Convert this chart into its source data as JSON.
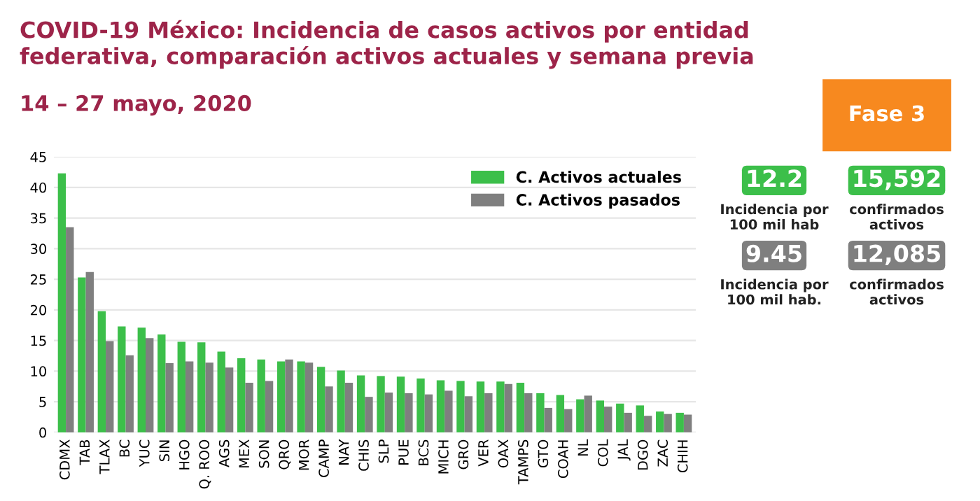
{
  "chart_data": {
    "type": "bar",
    "title": "COVID-19 México: Incidencia de casos activos por entidad\nfederativa, comparación activos actuales y semana previa",
    "subtitle": "14 – 27 mayo, 2020",
    "categories": [
      "CDMX",
      "TAB",
      "TLAX",
      "BC",
      "YUC",
      "SIN",
      "HGO",
      "Q. ROO",
      "AGS",
      "MEX",
      "SON",
      "QRO",
      "MOR",
      "CAMP",
      "NAY",
      "CHIS",
      "SLP",
      "PUE",
      "BCS",
      "MICH",
      "GRO",
      "VER",
      "OAX",
      "TAMPS",
      "GTO",
      "COAH",
      "NL",
      "COL",
      "JAL",
      "DGO",
      "ZAC",
      "CHIH"
    ],
    "series": [
      {
        "name": "C. Activos actuales",
        "color": "#3cbf4a",
        "values": [
          42.3,
          25.3,
          19.8,
          17.3,
          17.1,
          16.0,
          14.8,
          14.7,
          13.2,
          12.1,
          11.9,
          11.6,
          11.6,
          10.7,
          10.1,
          9.3,
          9.2,
          9.1,
          8.8,
          8.5,
          8.4,
          8.3,
          8.3,
          8.1,
          6.4,
          6.1,
          5.4,
          5.2,
          4.7,
          4.4,
          3.4,
          3.2
        ]
      },
      {
        "name": "C. Activos pasados",
        "color": "#7f7f7f",
        "values": [
          33.5,
          26.2,
          14.9,
          12.6,
          15.4,
          11.3,
          11.6,
          11.4,
          10.6,
          8.1,
          8.4,
          11.9,
          11.4,
          7.5,
          8.1,
          5.8,
          6.5,
          6.4,
          6.2,
          6.8,
          5.9,
          6.4,
          7.9,
          6.4,
          4.0,
          3.8,
          6.0,
          4.2,
          3.2,
          2.7,
          3.0,
          2.9
        ]
      }
    ],
    "ylim": [
      0,
      45
    ],
    "yticks": [
      0,
      5,
      10,
      15,
      20,
      25,
      30,
      35,
      40,
      45
    ],
    "grid": "y",
    "legend": "top right",
    "annotations": [
      "Fase 3",
      "12.2",
      "Incidencia por\n100 mil hab",
      "15,592",
      "confirmados\nactivos",
      "9.45",
      "Incidencia por\n100 mil hab.",
      "12,085",
      "confirmados\nactivos"
    ]
  }
}
